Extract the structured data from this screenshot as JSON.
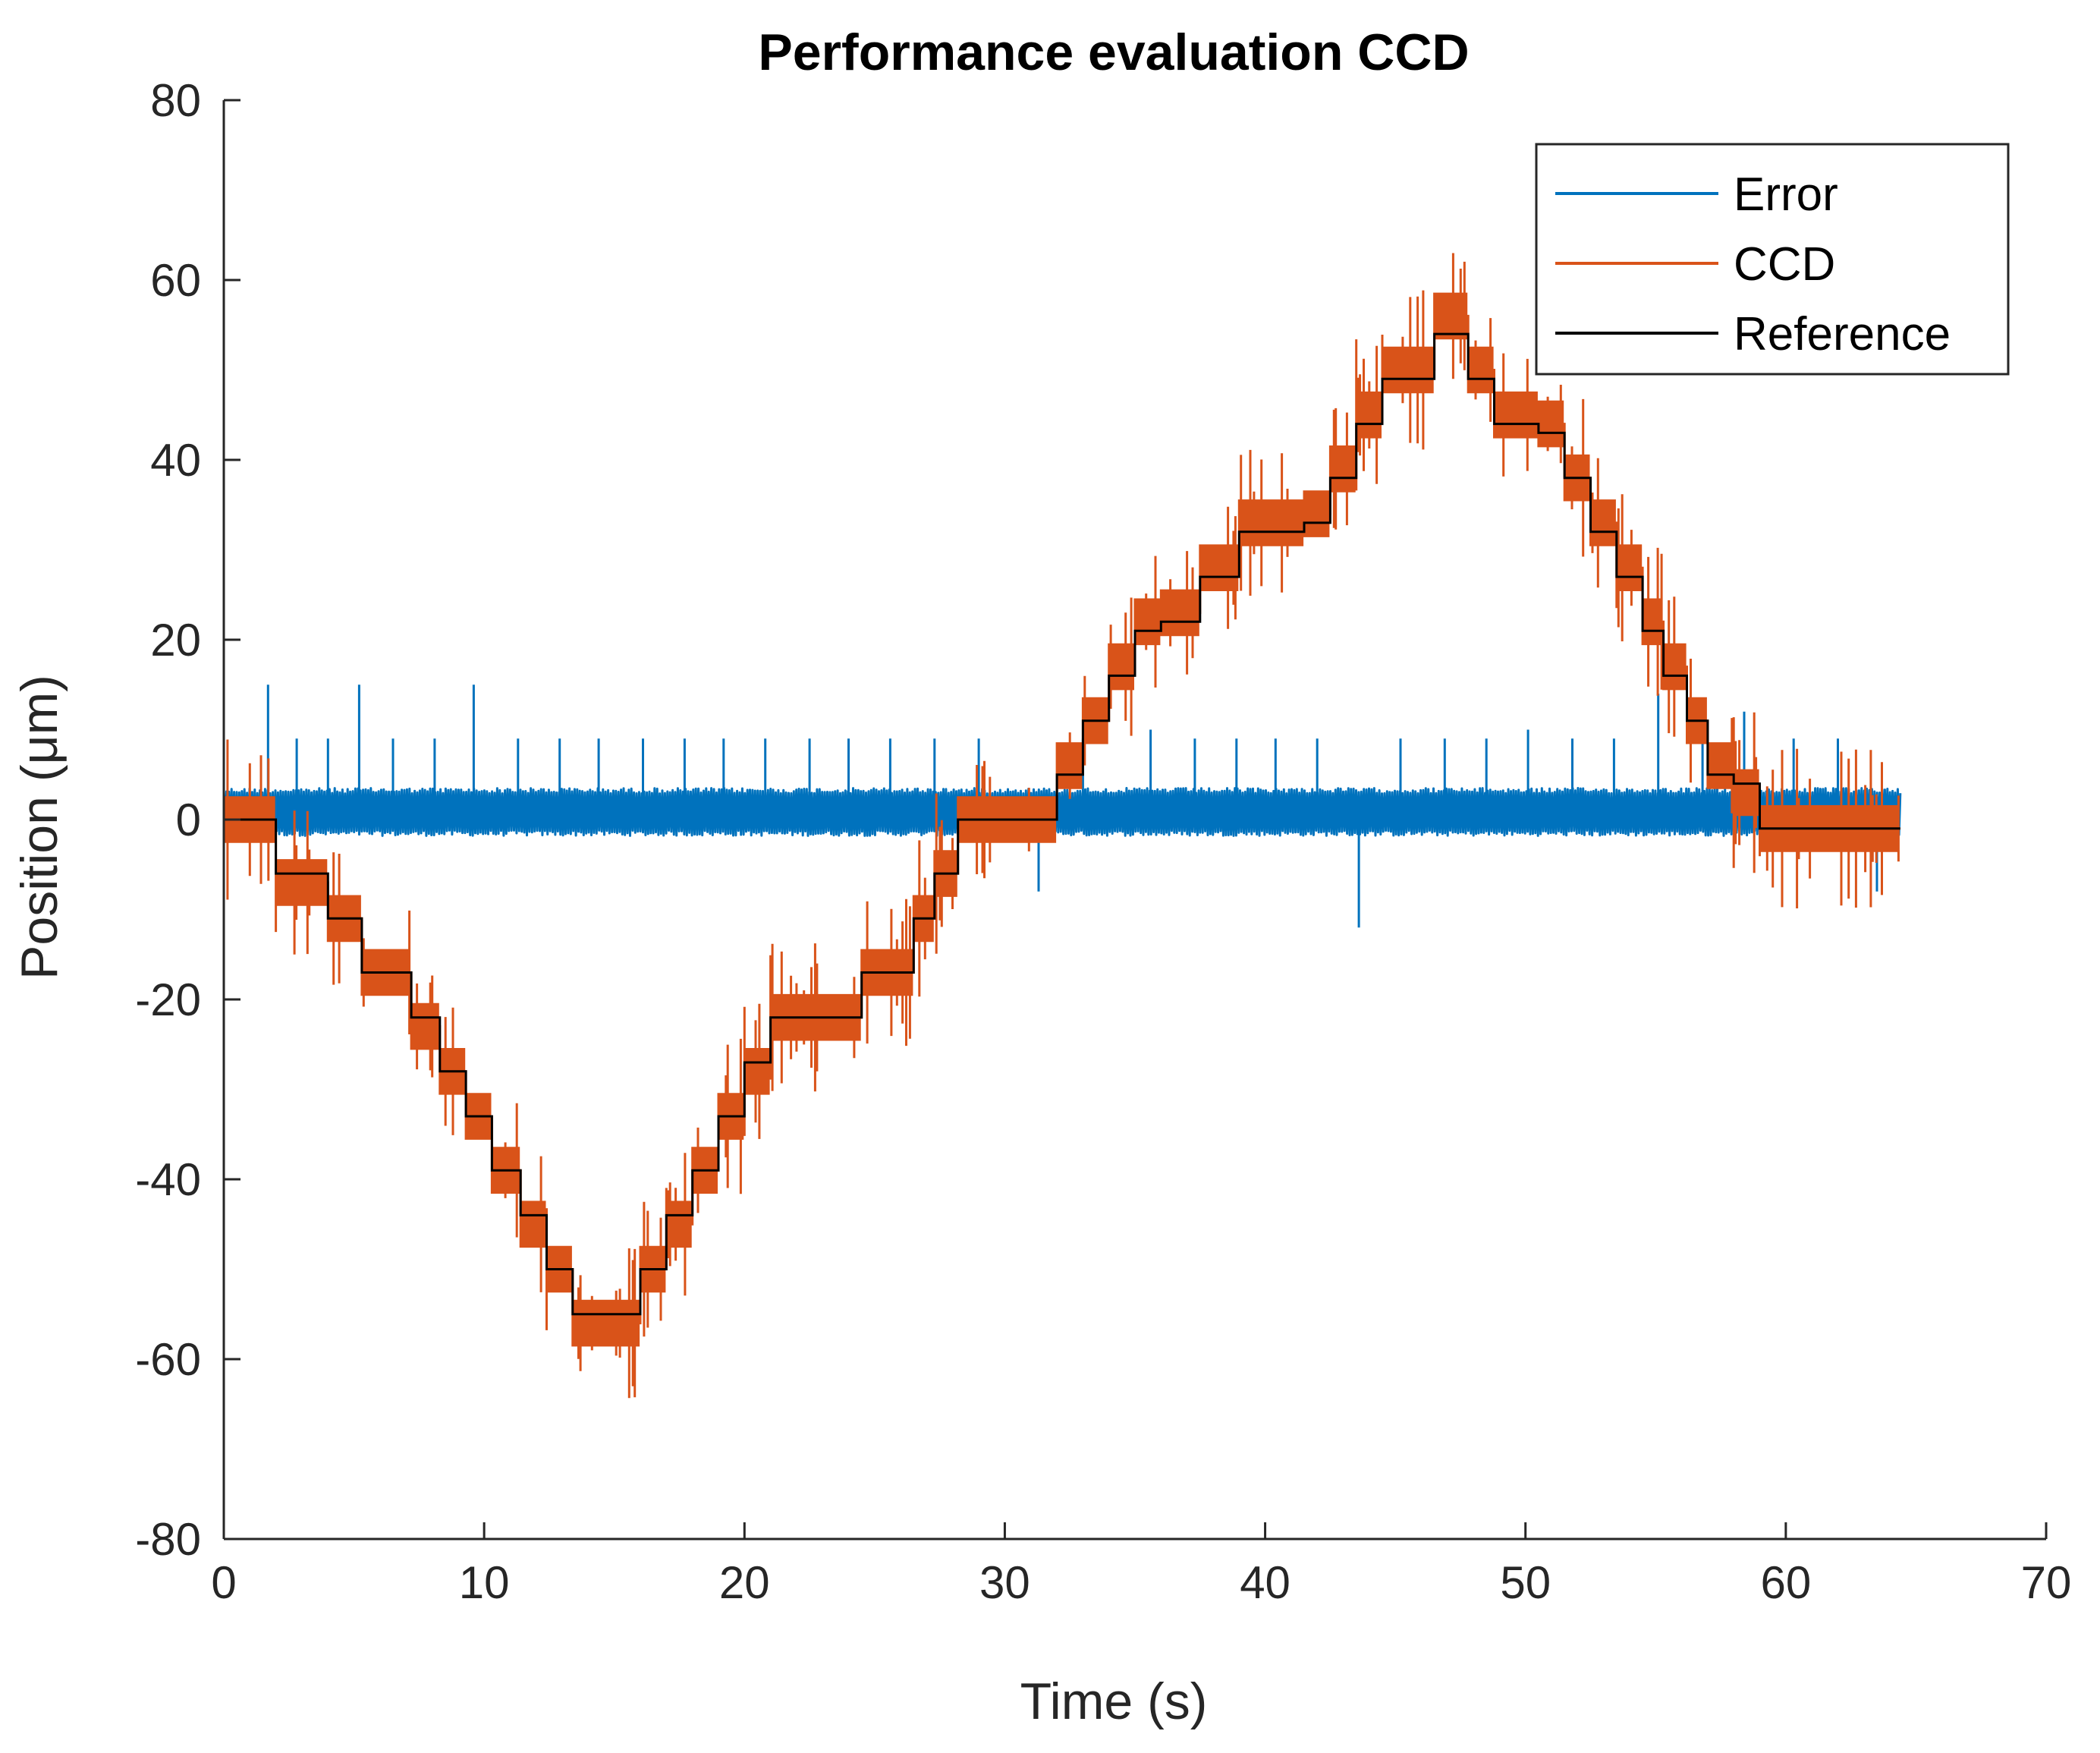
{
  "chart_data": {
    "type": "line",
    "title": "Performance evaluation CCD",
    "xlabel": "Time (s)",
    "ylabel": "Position (μm)",
    "xlim": [
      0,
      70
    ],
    "ylim": [
      -80,
      80
    ],
    "xticks": [
      "0",
      "10",
      "20",
      "30",
      "40",
      "50",
      "60",
      "70"
    ],
    "yticks": [
      "80",
      "60",
      "40",
      "20",
      "0",
      "-20",
      "-40",
      "-60",
      "-80"
    ],
    "legend_position": "top-right",
    "series": [
      {
        "name": "Error",
        "color": "#0072BD",
        "description": "noisy error signal around 0, band approx -2 to 4, spikes to about +/-9 to 15",
        "spikes_x": [
          1.7,
          2.8,
          4.0,
          5.2,
          6.5,
          8.1,
          9.6,
          11.3,
          12.9,
          14.4,
          16.1,
          17.7,
          19.2,
          20.8,
          22.5,
          24.0,
          25.6,
          27.3,
          29.0,
          31.3,
          33.0,
          35.6,
          37.3,
          38.9,
          40.4,
          42.0,
          43.6,
          45.2,
          46.9,
          48.5,
          50.1,
          51.8,
          53.4,
          55.1,
          56.8,
          58.4,
          60.3,
          62.0,
          63.5
        ],
        "spikes_y": [
          15,
          9,
          9,
          15,
          9,
          9,
          15,
          9,
          9,
          9,
          9,
          9,
          9,
          9,
          9,
          9,
          9,
          9,
          9,
          -8,
          9,
          10,
          9,
          9,
          9,
          9,
          -12,
          9,
          9,
          9,
          10,
          9,
          9,
          14,
          9,
          12,
          9,
          9,
          -8
        ]
      },
      {
        "name": "CCD",
        "color": "#D95319",
        "description": "staircase measurement with quantization noise, follows reference",
        "x": [
          0,
          2.0,
          2.0,
          4.0,
          4.0,
          5.3,
          5.3,
          7.2,
          7.2,
          8.3,
          8.3,
          9.3,
          9.3,
          10.3,
          10.3,
          11.4,
          11.4,
          12.4,
          12.4,
          13.4,
          13.4,
          14.0,
          14.0,
          16.0,
          16.0,
          17.0,
          17.0,
          18.0,
          18.0,
          19.0,
          19.0,
          20.0,
          20.0,
          21.0,
          21.0,
          24.5,
          24.5,
          26.5,
          26.5,
          27.3,
          27.3,
          28.2,
          28.2,
          29.0,
          29.0,
          32.0,
          32.0,
          33.0,
          33.0,
          34.0,
          34.0,
          35.0,
          35.0,
          36.0,
          36.0,
          37.5,
          37.5,
          39.0,
          39.0,
          41.5,
          41.5,
          42.5,
          42.5,
          43.5,
          43.5,
          44.5,
          44.5,
          46.5,
          46.5,
          47.8,
          47.8,
          48.8,
          48.8,
          50.5,
          50.5,
          51.5,
          51.5,
          52.5,
          52.5,
          53.5,
          53.5,
          54.5,
          54.5,
          55.3,
          55.3,
          56.2,
          56.2,
          57.0,
          57.0,
          58.0,
          58.0,
          59.0,
          59.0,
          60.5,
          60.5,
          64.4
        ],
        "y": [
          0,
          0,
          -7,
          -7,
          -11,
          -11,
          -17,
          -17,
          -23,
          -23,
          -28,
          -28,
          -33,
          -33,
          -39,
          -39,
          -45,
          -45,
          -50,
          -50,
          -56,
          -56,
          -56,
          -56,
          -50,
          -50,
          -45,
          -45,
          -39,
          -39,
          -33,
          -33,
          -28,
          -28,
          -22,
          -22,
          -17,
          -17,
          -11,
          -11,
          -6,
          -6,
          0,
          0,
          0,
          0,
          6,
          6,
          11,
          11,
          17,
          17,
          22,
          22,
          23,
          23,
          28,
          28,
          33,
          33,
          34,
          34,
          39,
          39,
          45,
          45,
          50,
          50,
          56,
          56,
          50,
          50,
          45,
          45,
          44,
          44,
          38,
          38,
          33,
          33,
          28,
          28,
          22,
          22,
          17,
          17,
          11,
          11,
          6,
          6,
          3,
          3,
          -1,
          -1,
          -1,
          -1
        ]
      },
      {
        "name": "Reference",
        "color": "#000000",
        "description": "staircase reference trajectory: 0 to about -56 at 14-16 s, back to 0 at about 29-32 s, up to about 55 at 47 s, back to 0 at about 60 s",
        "x": [
          0,
          2.0,
          2.0,
          4.0,
          4.0,
          5.3,
          5.3,
          7.2,
          7.2,
          8.3,
          8.3,
          9.3,
          9.3,
          10.3,
          10.3,
          11.4,
          11.4,
          12.4,
          12.4,
          13.4,
          13.4,
          14.0,
          14.0,
          16.0,
          16.0,
          17.0,
          17.0,
          18.0,
          18.0,
          19.0,
          19.0,
          20.0,
          20.0,
          21.0,
          21.0,
          24.5,
          24.5,
          26.5,
          26.5,
          27.3,
          27.3,
          28.2,
          28.2,
          29.0,
          29.0,
          32.0,
          32.0,
          33.0,
          33.0,
          34.0,
          34.0,
          35.0,
          35.0,
          36.0,
          36.0,
          37.5,
          37.5,
          39.0,
          39.0,
          41.5,
          41.5,
          42.5,
          42.5,
          43.5,
          43.5,
          44.5,
          44.5,
          46.5,
          46.5,
          47.8,
          47.8,
          48.8,
          48.8,
          50.5,
          50.5,
          51.5,
          51.5,
          52.5,
          52.5,
          53.5,
          53.5,
          54.5,
          54.5,
          55.3,
          55.3,
          56.2,
          56.2,
          57.0,
          57.0,
          58.0,
          58.0,
          59.0,
          59.0,
          60.5,
          60.5,
          64.4
        ],
        "y": [
          0,
          0,
          -6,
          -6,
          -11,
          -11,
          -17,
          -17,
          -22,
          -22,
          -28,
          -28,
          -33,
          -33,
          -39,
          -39,
          -44,
          -44,
          -50,
          -50,
          -55,
          -55,
          -55,
          -55,
          -50,
          -50,
          -44,
          -44,
          -39,
          -39,
          -33,
          -33,
          -27,
          -27,
          -22,
          -22,
          -17,
          -17,
          -11,
          -11,
          -6,
          -6,
          0,
          0,
          0,
          0,
          5,
          5,
          11,
          11,
          16,
          16,
          21,
          21,
          22,
          22,
          27,
          27,
          32,
          32,
          33,
          33,
          38,
          38,
          44,
          44,
          49,
          49,
          54,
          54,
          49,
          49,
          44,
          44,
          43,
          43,
          38,
          38,
          32,
          32,
          27,
          27,
          21,
          21,
          16,
          16,
          11,
          11,
          5,
          5,
          4,
          4,
          -1,
          -1,
          -1,
          -1
        ]
      }
    ]
  }
}
